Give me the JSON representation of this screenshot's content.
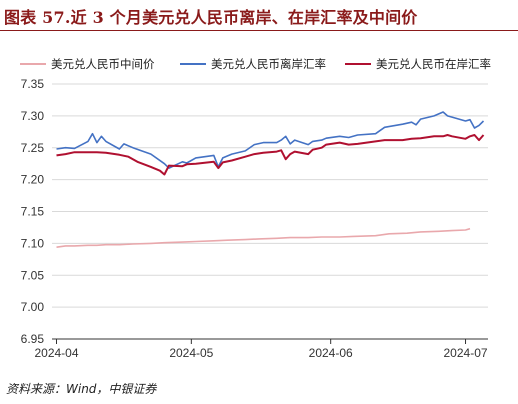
{
  "header": {
    "title": "图表 57.近 3 个月美元兑人民币离岸、在岸汇率及中间价"
  },
  "footer": {
    "source": "资料来源：Wind，中银证券"
  },
  "chart_data": {
    "type": "line",
    "title": "",
    "xlabel": "",
    "ylabel": "",
    "ylim": [
      6.95,
      7.35
    ],
    "yticks": [
      "6.95",
      "7.00",
      "7.05",
      "7.10",
      "7.15",
      "7.20",
      "7.25",
      "7.30",
      "7.35"
    ],
    "xticks": [
      {
        "label": "2024-04",
        "date": "2024-04-01"
      },
      {
        "label": "2024-05",
        "date": "2024-05-01"
      },
      {
        "label": "2024-06",
        "date": "2024-06-01"
      },
      {
        "label": "2024-07",
        "date": "2024-07-01"
      }
    ],
    "grid": "horizontal",
    "legend_position": "top",
    "series": [
      {
        "name": "美元兑人民币中间价",
        "color": "#e9a8ac",
        "points": [
          [
            "2024-04-01",
            7.094
          ],
          [
            "2024-04-03",
            7.096
          ],
          [
            "2024-04-05",
            7.096
          ],
          [
            "2024-04-08",
            7.097
          ],
          [
            "2024-04-10",
            7.097
          ],
          [
            "2024-04-12",
            7.098
          ],
          [
            "2024-04-15",
            7.098
          ],
          [
            "2024-04-18",
            7.099
          ],
          [
            "2024-04-22",
            7.1
          ],
          [
            "2024-04-25",
            7.101
          ],
          [
            "2024-04-29",
            7.102
          ],
          [
            "2024-05-02",
            7.103
          ],
          [
            "2024-05-06",
            7.104
          ],
          [
            "2024-05-09",
            7.105
          ],
          [
            "2024-05-13",
            7.106
          ],
          [
            "2024-05-16",
            7.107
          ],
          [
            "2024-05-20",
            7.108
          ],
          [
            "2024-05-23",
            7.109
          ],
          [
            "2024-05-27",
            7.109
          ],
          [
            "2024-05-30",
            7.11
          ],
          [
            "2024-06-03",
            7.11
          ],
          [
            "2024-06-06",
            7.111
          ],
          [
            "2024-06-11",
            7.112
          ],
          [
            "2024-06-14",
            7.115
          ],
          [
            "2024-06-18",
            7.116
          ],
          [
            "2024-06-21",
            7.118
          ],
          [
            "2024-06-25",
            7.119
          ],
          [
            "2024-06-28",
            7.12
          ],
          [
            "2024-07-01",
            7.121
          ],
          [
            "2024-07-02",
            7.123
          ]
        ]
      },
      {
        "name": "美元兑人民币离岸汇率",
        "color": "#4472c4",
        "points": [
          [
            "2024-04-01",
            7.248
          ],
          [
            "2024-04-03",
            7.25
          ],
          [
            "2024-04-05",
            7.249
          ],
          [
            "2024-04-08",
            7.26
          ],
          [
            "2024-04-09",
            7.272
          ],
          [
            "2024-04-10",
            7.258
          ],
          [
            "2024-04-11",
            7.268
          ],
          [
            "2024-04-12",
            7.26
          ],
          [
            "2024-04-15",
            7.248
          ],
          [
            "2024-04-16",
            7.256
          ],
          [
            "2024-04-18",
            7.25
          ],
          [
            "2024-04-22",
            7.24
          ],
          [
            "2024-04-25",
            7.225
          ],
          [
            "2024-04-26",
            7.218
          ],
          [
            "2024-04-29",
            7.228
          ],
          [
            "2024-04-30",
            7.226
          ],
          [
            "2024-05-02",
            7.234
          ],
          [
            "2024-05-06",
            7.238
          ],
          [
            "2024-05-07",
            7.22
          ],
          [
            "2024-05-08",
            7.234
          ],
          [
            "2024-05-10",
            7.24
          ],
          [
            "2024-05-13",
            7.245
          ],
          [
            "2024-05-15",
            7.255
          ],
          [
            "2024-05-17",
            7.258
          ],
          [
            "2024-05-20",
            7.258
          ],
          [
            "2024-05-21",
            7.262
          ],
          [
            "2024-05-22",
            7.268
          ],
          [
            "2024-05-23",
            7.256
          ],
          [
            "2024-05-24",
            7.262
          ],
          [
            "2024-05-27",
            7.255
          ],
          [
            "2024-05-28",
            7.26
          ],
          [
            "2024-05-30",
            7.262
          ],
          [
            "2024-05-31",
            7.265
          ],
          [
            "2024-06-03",
            7.268
          ],
          [
            "2024-06-05",
            7.266
          ],
          [
            "2024-06-07",
            7.27
          ],
          [
            "2024-06-11",
            7.272
          ],
          [
            "2024-06-13",
            7.282
          ],
          [
            "2024-06-17",
            7.287
          ],
          [
            "2024-06-19",
            7.29
          ],
          [
            "2024-06-20",
            7.286
          ],
          [
            "2024-06-21",
            7.295
          ],
          [
            "2024-06-24",
            7.3
          ],
          [
            "2024-06-26",
            7.306
          ],
          [
            "2024-06-27",
            7.3
          ],
          [
            "2024-06-28",
            7.298
          ],
          [
            "2024-07-01",
            7.292
          ],
          [
            "2024-07-02",
            7.294
          ],
          [
            "2024-07-03",
            7.281
          ],
          [
            "2024-07-04",
            7.285
          ],
          [
            "2024-07-05",
            7.292
          ]
        ]
      },
      {
        "name": "美元兑人民币在岸汇率",
        "color": "#b01030",
        "points": [
          [
            "2024-04-01",
            7.238
          ],
          [
            "2024-04-03",
            7.24
          ],
          [
            "2024-04-05",
            7.243
          ],
          [
            "2024-04-08",
            7.243
          ],
          [
            "2024-04-10",
            7.243
          ],
          [
            "2024-04-12",
            7.242
          ],
          [
            "2024-04-15",
            7.239
          ],
          [
            "2024-04-17",
            7.236
          ],
          [
            "2024-04-19",
            7.228
          ],
          [
            "2024-04-22",
            7.22
          ],
          [
            "2024-04-24",
            7.214
          ],
          [
            "2024-04-25",
            7.208
          ],
          [
            "2024-04-26",
            7.222
          ],
          [
            "2024-04-29",
            7.221
          ],
          [
            "2024-04-30",
            7.224
          ],
          [
            "2024-05-02",
            7.225
          ],
          [
            "2024-05-06",
            7.228
          ],
          [
            "2024-05-07",
            7.218
          ],
          [
            "2024-05-08",
            7.227
          ],
          [
            "2024-05-10",
            7.23
          ],
          [
            "2024-05-13",
            7.236
          ],
          [
            "2024-05-15",
            7.24
          ],
          [
            "2024-05-17",
            7.242
          ],
          [
            "2024-05-20",
            7.244
          ],
          [
            "2024-05-21",
            7.246
          ],
          [
            "2024-05-22",
            7.232
          ],
          [
            "2024-05-23",
            7.24
          ],
          [
            "2024-05-24",
            7.244
          ],
          [
            "2024-05-27",
            7.24
          ],
          [
            "2024-05-28",
            7.247
          ],
          [
            "2024-05-30",
            7.25
          ],
          [
            "2024-05-31",
            7.255
          ],
          [
            "2024-06-03",
            7.258
          ],
          [
            "2024-06-05",
            7.255
          ],
          [
            "2024-06-07",
            7.256
          ],
          [
            "2024-06-11",
            7.26
          ],
          [
            "2024-06-13",
            7.262
          ],
          [
            "2024-06-17",
            7.262
          ],
          [
            "2024-06-19",
            7.264
          ],
          [
            "2024-06-21",
            7.265
          ],
          [
            "2024-06-24",
            7.268
          ],
          [
            "2024-06-26",
            7.268
          ],
          [
            "2024-06-27",
            7.27
          ],
          [
            "2024-06-28",
            7.268
          ],
          [
            "2024-07-01",
            7.264
          ],
          [
            "2024-07-02",
            7.268
          ],
          [
            "2024-07-03",
            7.27
          ],
          [
            "2024-07-04",
            7.262
          ],
          [
            "2024-07-05",
            7.27
          ]
        ]
      }
    ]
  }
}
